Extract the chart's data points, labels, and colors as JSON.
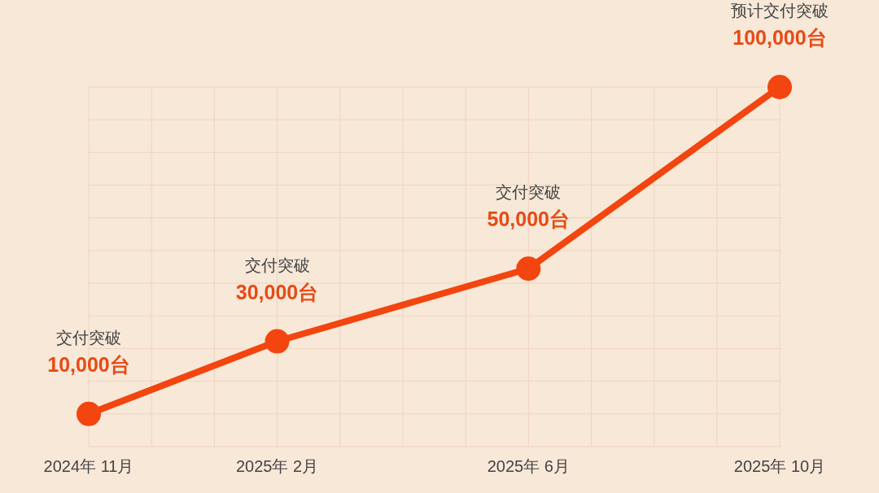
{
  "chart_data": {
    "type": "line",
    "categories": [
      "2024年 11月",
      null,
      null,
      "2025年 2月",
      null,
      null,
      null,
      "2025年 6月",
      null,
      null,
      null,
      "2025年 10月"
    ],
    "series": [
      {
        "color": "#f2450f",
        "x": [
          "2024年 11月",
          "2025年 2月",
          "2025年 6月",
          "2025年 10月"
        ],
        "values": [
          10000,
          30000,
          50000,
          100000
        ],
        "value_labels": [
          "10,000台",
          "30,000台",
          "50,000台",
          "100,000台"
        ]
      }
    ],
    "annotations": [
      "交付突破",
      "交付突破",
      "交付突破",
      "预计交付突破"
    ],
    "ylim": [
      1000,
      100000
    ],
    "yticks": [
      {
        "value": 1000,
        "label": null
      },
      {
        "value": 10000,
        "label": null
      },
      {
        "value": 19000,
        "label": null
      },
      {
        "value": 28000,
        "label": null
      },
      {
        "value": 37000,
        "label": null
      },
      {
        "value": 46000,
        "label": null
      },
      {
        "value": 55000,
        "label": null
      },
      {
        "value": 64000,
        "label": null
      },
      {
        "value": 73000,
        "label": null
      },
      {
        "value": 82000,
        "label": null
      },
      {
        "value": 91000,
        "label": null
      },
      {
        "value": 100000,
        "label": null
      }
    ],
    "grid": true,
    "marker": "circle",
    "line_style": "solid",
    "tick_labels": "x"
  }
}
